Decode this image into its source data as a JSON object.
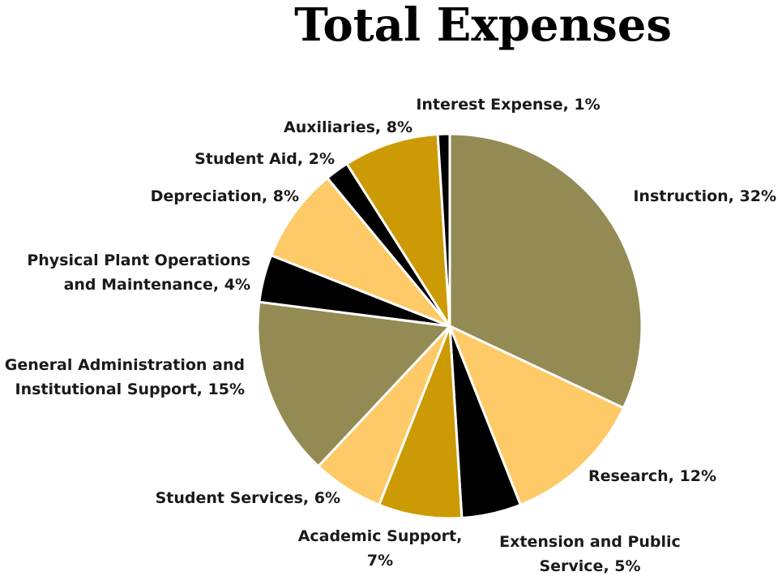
{
  "chart_data": {
    "type": "pie",
    "title": "Total Expenses",
    "start_angle_deg": 0,
    "direction": "clockwise",
    "slices": [
      {
        "name": "Instruction",
        "value": 32,
        "color": "#948a54",
        "label": [
          "Instruction, 32%"
        ]
      },
      {
        "name": "Research",
        "value": 12,
        "color": "#fdca67",
        "label": [
          "Research, 12%"
        ]
      },
      {
        "name": "Extension and Public Service",
        "value": 5,
        "color": "#000000",
        "label": [
          "Extension and Public",
          "Service, 5%"
        ]
      },
      {
        "name": "Academic Support",
        "value": 7,
        "color": "#cc9a04",
        "label": [
          "Academic Support,",
          "7%"
        ]
      },
      {
        "name": "Student Services",
        "value": 6,
        "color": "#fdca67",
        "label": [
          "Student Services, 6%"
        ]
      },
      {
        "name": "General Administration and Institutional Support",
        "value": 15,
        "color": "#948a54",
        "label": [
          "General Administration and",
          "Institutional Support, 15%"
        ]
      },
      {
        "name": "Physical Plant Operations and Maintenance",
        "value": 4,
        "color": "#000000",
        "label": [
          "Physical Plant Operations",
          "and Maintenance, 4%"
        ]
      },
      {
        "name": "Depreciation",
        "value": 8,
        "color": "#fdca67",
        "label": [
          "Depreciation, 8%"
        ]
      },
      {
        "name": "Student Aid",
        "value": 2,
        "color": "#000000",
        "label": [
          "Student Aid, 2%"
        ]
      },
      {
        "name": "Auxiliaries",
        "value": 8,
        "color": "#cc9a04",
        "label": [
          "Auxiliaries, 8%"
        ]
      },
      {
        "name": "Interest Expense",
        "value": 1,
        "color": "#000000",
        "label": [
          "Interest Expense, 1%"
        ]
      }
    ]
  }
}
